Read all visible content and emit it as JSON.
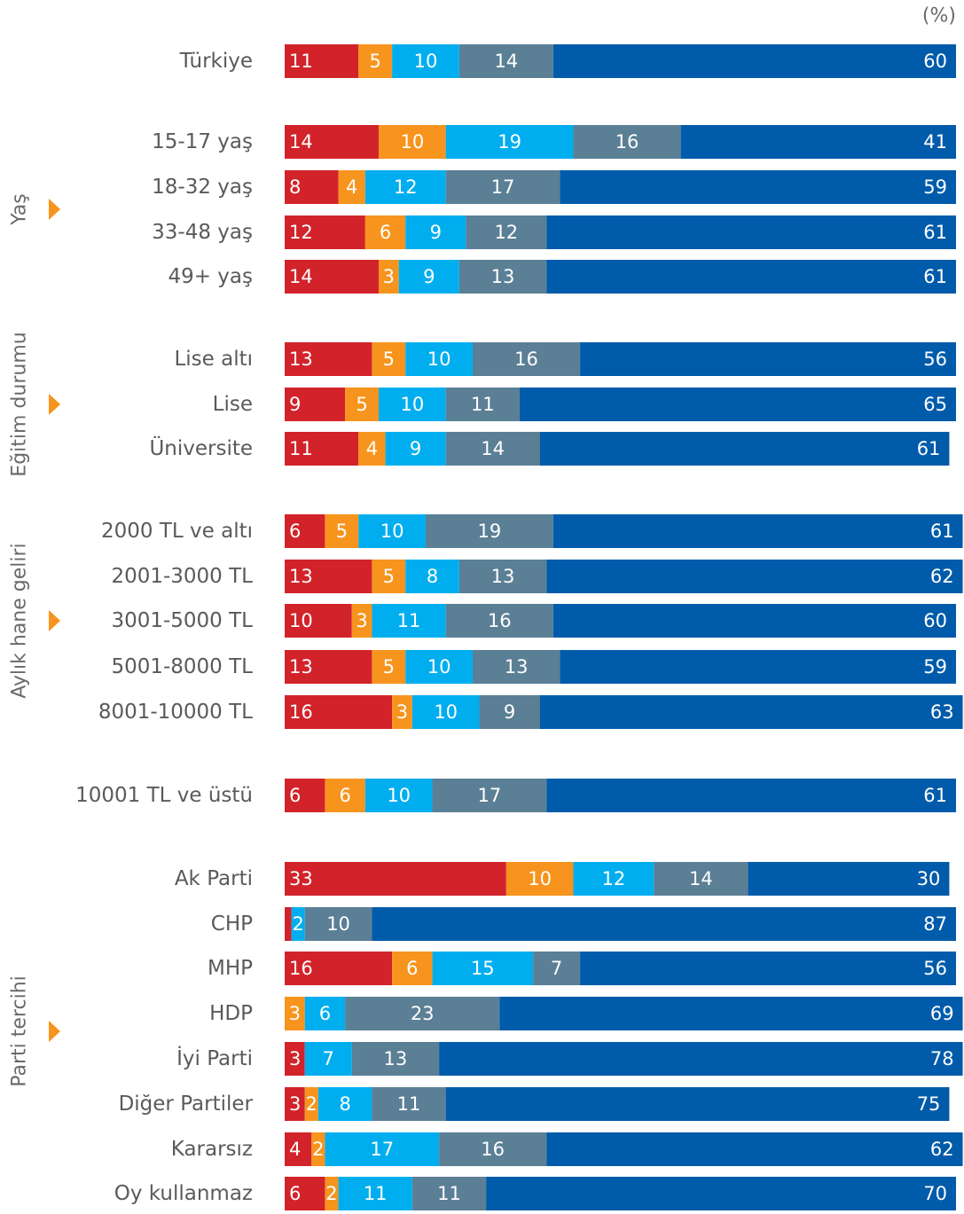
{
  "chart_data": {
    "type": "stacked_bar_horizontal",
    "unit_label": "(%)",
    "group_labels": [
      "Yaş",
      "Eğitim durumu",
      "Aylık hane geliri",
      "Parti tercihi"
    ],
    "categories": [
      "Türkiye",
      "15-17 yaş",
      "18-32 yaş",
      "33-48 yaş",
      "49+ yaş",
      "Lise altı",
      "Lise",
      "Üniversite",
      "2000 TL ve altı",
      "2001-3000 TL",
      "3001-5000 TL",
      "5001-8000 TL",
      "8001-10000 TL",
      "10001 TL ve üstü",
      "Ak Parti",
      "CHP",
      "MHP",
      "HDP",
      "İyi Parti",
      "Diğer Partiler",
      "Kararsız",
      "Oy kullanmaz"
    ],
    "xlim": [
      0,
      100
    ],
    "series": [
      {
        "color": "#d2232a",
        "values": [
          11,
          14,
          8,
          12,
          14,
          13,
          9,
          11,
          6,
          13,
          10,
          13,
          16,
          6,
          33,
          1,
          16,
          0,
          3,
          3,
          4,
          6
        ],
        "value_labels": [
          "11",
          "14",
          "8",
          "12",
          "14",
          "13",
          "9",
          "11",
          "6",
          "13",
          "10",
          "13",
          "16",
          "6",
          "33",
          null,
          "16",
          null,
          "3",
          "3",
          "4",
          "6"
        ]
      },
      {
        "color": "#f7941d",
        "values": [
          5,
          10,
          4,
          6,
          3,
          5,
          5,
          4,
          5,
          5,
          3,
          5,
          3,
          6,
          10,
          0,
          6,
          3,
          0,
          2,
          2,
          2
        ]
      },
      {
        "color": "#00aeef",
        "values": [
          10,
          19,
          12,
          9,
          9,
          10,
          10,
          9,
          10,
          8,
          11,
          10,
          10,
          10,
          12,
          2,
          15,
          6,
          7,
          8,
          17,
          11
        ]
      },
      {
        "color": "#5b7f95",
        "values": [
          14,
          16,
          17,
          12,
          13,
          16,
          11,
          14,
          19,
          13,
          16,
          13,
          9,
          17,
          14,
          10,
          7,
          23,
          13,
          11,
          16,
          11
        ]
      },
      {
        "color": "#005baa",
        "values": [
          60,
          41,
          59,
          61,
          61,
          56,
          65,
          61,
          61,
          62,
          60,
          59,
          63,
          61,
          30,
          87,
          56,
          69,
          78,
          75,
          62,
          70
        ]
      }
    ]
  }
}
